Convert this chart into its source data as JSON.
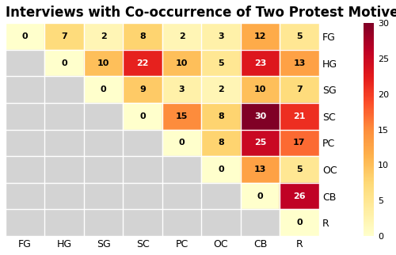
{
  "title": "Interviews with Co-occurrence of Two Protest Motives",
  "labels": [
    "FG",
    "HG",
    "SG",
    "SC",
    "PC",
    "OC",
    "CB",
    "R"
  ],
  "matrix": [
    [
      0,
      7,
      2,
      8,
      2,
      3,
      12,
      5
    ],
    [
      null,
      0,
      10,
      22,
      10,
      5,
      23,
      13
    ],
    [
      null,
      null,
      0,
      9,
      3,
      2,
      10,
      7
    ],
    [
      null,
      null,
      null,
      0,
      15,
      8,
      30,
      21
    ],
    [
      null,
      null,
      null,
      null,
      0,
      8,
      25,
      17
    ],
    [
      null,
      null,
      null,
      null,
      null,
      0,
      13,
      5
    ],
    [
      null,
      null,
      null,
      null,
      null,
      null,
      0,
      26
    ],
    [
      null,
      null,
      null,
      null,
      null,
      null,
      null,
      0
    ]
  ],
  "vmin": 0,
  "vmax": 30,
  "colormap": "YlOrRd",
  "nan_color": "#d3d3d3",
  "title_fontsize": 12,
  "tick_fontsize": 9,
  "cell_fontsize": 8,
  "colorbar_ticks": [
    0,
    5,
    10,
    15,
    20,
    25,
    30
  ],
  "background_color": "#ffffff"
}
